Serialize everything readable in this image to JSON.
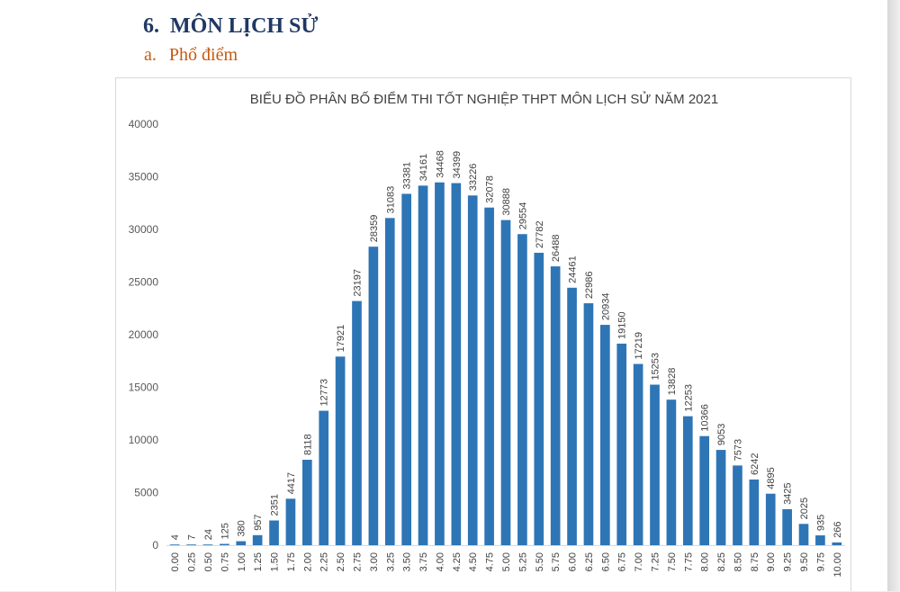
{
  "document": {
    "section_number": "6.",
    "section_title": "MÔN LỊCH SỬ",
    "subsection_letter": "a.",
    "subsection_title": "Phổ điểm"
  },
  "colors": {
    "bar": "#2e75b6",
    "heading": "#1f3864",
    "subheading": "#c55a11",
    "axis": "#d9d9d9"
  },
  "chart_data": {
    "type": "bar",
    "title": "BIỂU ĐỒ PHÂN BỐ ĐIỂM THI TỐT NGHIỆP THPT MÔN LỊCH SỬ NĂM 2021",
    "xlabel": "",
    "ylabel": "",
    "ylim": [
      0,
      40000
    ],
    "yticks": [
      "0",
      "5000",
      "10000",
      "15000",
      "20000",
      "25000",
      "30000",
      "35000",
      "40000"
    ],
    "grid": false,
    "legend": "none",
    "categories": [
      "0.00",
      "0.25",
      "0.50",
      "0.75",
      "1.00",
      "1.25",
      "1.50",
      "1.75",
      "2.00",
      "2.25",
      "2.50",
      "2.75",
      "3.00",
      "3.25",
      "3.50",
      "3.75",
      "4.00",
      "4.25",
      "4.50",
      "4.75",
      "5.00",
      "5.25",
      "5.50",
      "5.75",
      "6.00",
      "6.25",
      "6.50",
      "6.75",
      "7.00",
      "7.25",
      "7.50",
      "7.75",
      "8.00",
      "8.25",
      "8.50",
      "8.75",
      "9.00",
      "9.25",
      "9.50",
      "9.75",
      "10.00"
    ],
    "values": [
      4,
      7,
      24,
      125,
      380,
      957,
      2351,
      4417,
      8118,
      12773,
      17921,
      23197,
      28359,
      31083,
      33381,
      34161,
      34468,
      34399,
      33226,
      32078,
      30888,
      29554,
      27782,
      26488,
      24461,
      22986,
      20934,
      19150,
      17219,
      15253,
      13828,
      12253,
      10366,
      9053,
      7573,
      6242,
      4895,
      3425,
      2025,
      935,
      266
    ]
  }
}
